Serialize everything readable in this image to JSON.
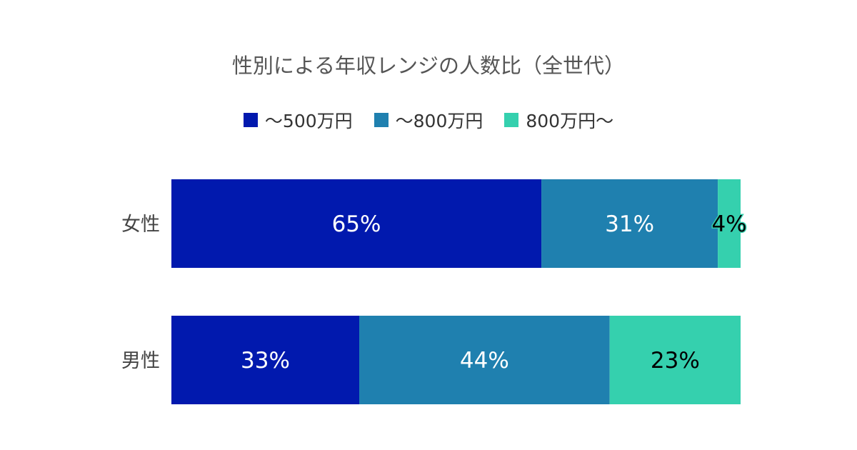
{
  "chart_data": {
    "type": "bar",
    "orientation": "horizontal",
    "stacked": true,
    "title": "性別による年収レンジの人数比（全世代）",
    "categories": [
      "女性",
      "男性"
    ],
    "series": [
      {
        "name": "～500万円",
        "values": [
          65,
          33
        ],
        "labels": [
          "65%",
          "33%"
        ],
        "color": "#0119AE",
        "label_color": "#ffffff"
      },
      {
        "name": "～800万円",
        "values": [
          31,
          44
        ],
        "labels": [
          "31%",
          "44%"
        ],
        "color": "#1F80AF",
        "label_color": "#ffffff"
      },
      {
        "name": "800万円～",
        "values": [
          4,
          23
        ],
        "labels": [
          "4%",
          "23%"
        ],
        "color": "#35D0AE",
        "label_color": "#000000"
      }
    ],
    "xlim": [
      0,
      100
    ],
    "unit": "%",
    "grid": false,
    "legend_position": "top"
  }
}
